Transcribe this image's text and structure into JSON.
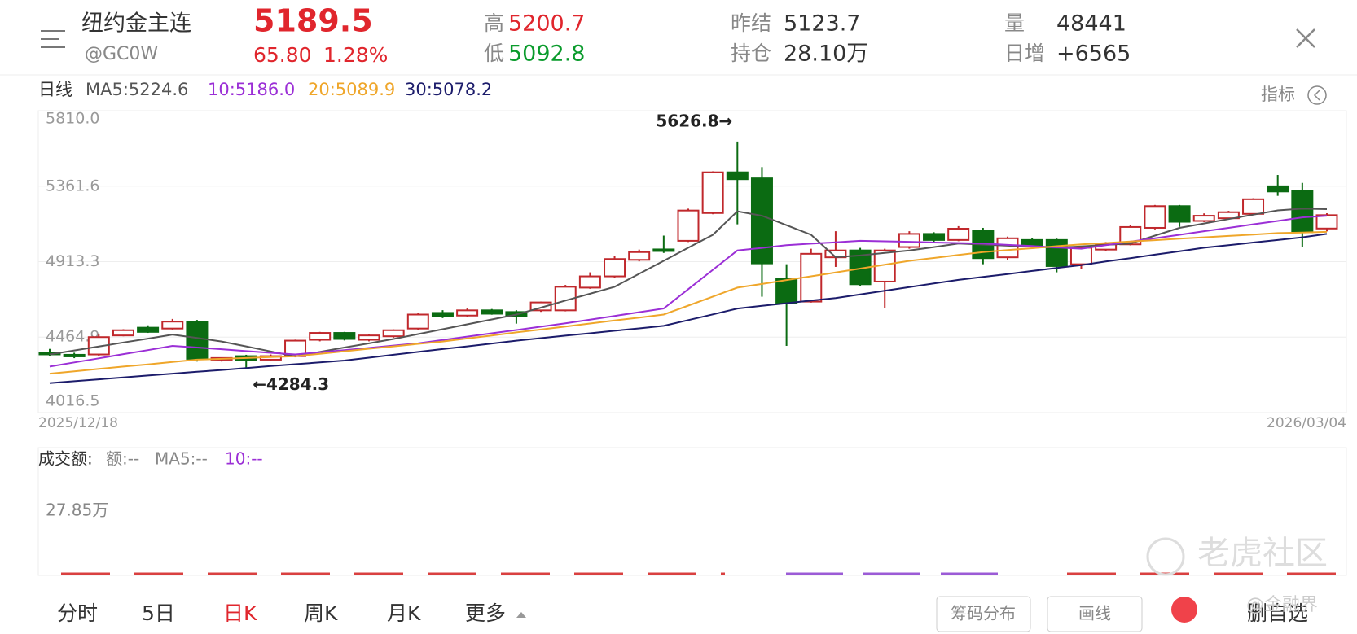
{
  "header": {
    "name": "纽约金主连",
    "code": "@GC0W",
    "price": "5189.5",
    "change": "65.80",
    "change_pct": "1.28%",
    "high_label": "高",
    "high": "5200.7",
    "low_label": "低",
    "low": "5092.8",
    "prev_settle_label": "昨结",
    "prev_settle": "5123.7",
    "open_interest_label": "持仓",
    "open_interest": "28.10万",
    "volume_label": "量",
    "volume": "48441",
    "daily_increase_label": "日增",
    "daily_increase": "+6565"
  },
  "chart_data": {
    "type": "candlestick",
    "period_label": "日线",
    "indicator_button": "指标",
    "categories": [
      "2025/12/18",
      null,
      null,
      null,
      null,
      null,
      null,
      null,
      null,
      null,
      null,
      null,
      null,
      null,
      null,
      null,
      null,
      null,
      null,
      null,
      null,
      null,
      null,
      null,
      null,
      null,
      null,
      null,
      null,
      null,
      null,
      null,
      null,
      null,
      null,
      null,
      null,
      null,
      null,
      null,
      null,
      null,
      null,
      null,
      null,
      null,
      null,
      null,
      null,
      null,
      null,
      null,
      "2026/03/04"
    ],
    "open": [
      4372,
      4360,
      4362,
      4475,
      4521,
      4516,
      4557,
      4331,
      4352,
      4331,
      4352,
      4449,
      4490,
      4449,
      4470,
      4516,
      4609,
      4593,
      4624,
      4614,
      4624,
      4624,
      4759,
      4826,
      4924,
      4986,
      5037,
      5202,
      5444,
      5408,
      4810,
      4676,
      4939,
      4980,
      4795,
      5000,
      5078,
      5042,
      5099,
      4939,
      5042,
      5042,
      4898,
      4985,
      5016,
      5114,
      5243,
      5155,
      5171,
      5197,
      5361,
      5335,
      5110
    ],
    "high": [
      4395,
      4372,
      4480,
      4512,
      4535,
      4573,
      4567,
      4345,
      4360,
      4362,
      4450,
      4496,
      4496,
      4485,
      4511,
      4610,
      4625,
      4635,
      4632,
      4625,
      4676,
      4775,
      4850,
      4945,
      4985,
      5068,
      5228,
      5450,
      5626.8,
      5475,
      4898,
      4990,
      5094,
      4995,
      4990,
      5094,
      5088,
      5124,
      5114,
      5062,
      5055,
      5050,
      5006,
      5030,
      5130,
      5250,
      5250,
      5200,
      5215,
      5290,
      5428,
      5381,
      5200.7
    ],
    "low": [
      4350,
      4340,
      4352,
      4470,
      4490,
      4510,
      4320,
      4320,
      4284.3,
      4325,
      4345,
      4440,
      4445,
      4440,
      4462,
      4508,
      4578,
      4585,
      4598,
      4545,
      4615,
      4618,
      4752,
      4818,
      4915,
      4965,
      5030,
      5195,
      5135,
      4705,
      4413,
      4670,
      4882,
      4770,
      4640,
      4990,
      5030,
      5035,
      4898,
      4925,
      5000,
      4850,
      4870,
      4978,
      5010,
      5105,
      5120,
      5148,
      5165,
      5190,
      5304,
      5001,
      5092.8
    ],
    "close": [
      4368,
      4352,
      4465,
      4506,
      4496,
      4557,
      4336,
      4341,
      4326,
      4352,
      4444,
      4490,
      4454,
      4475,
      4506,
      4599,
      4588,
      4624,
      4604,
      4588,
      4671,
      4764,
      4826,
      4929,
      4970,
      4980,
      5217,
      5444,
      5403,
      4903,
      4666,
      4960,
      4980,
      4779,
      4980,
      5078,
      5042,
      5109,
      4934,
      5052,
      5006,
      4887,
      4996,
      5016,
      5119,
      5243,
      5150,
      5186,
      5207,
      5284,
      5330,
      5088,
      5189.5
    ],
    "up_color": "#c0282c",
    "down_color": "#0b6b12",
    "series": [
      {
        "name": "MA5:5224.6",
        "color": "#555555",
        "values": [
          4362,
          4386,
          4409,
          4433,
          4456,
          4480,
          4460,
          4439,
          4410,
          4380,
          4351,
          4377,
          4403,
          4428,
          4454,
          4483,
          4512,
          4541,
          4570,
          4599,
          4640,
          4682,
          4723,
          4764,
          4841,
          4918,
          4996,
          5073,
          5212,
          5186,
          5130,
          5073,
          4940,
          4950,
          4965,
          4980,
          5000,
          5021,
          5015,
          5008,
          5002,
          4996,
          5004,
          5013,
          5021,
          5068,
          5114,
          5140,
          5166,
          5192,
          5218,
          5228,
          5225
        ]
      },
      {
        "name": "10:5186.0",
        "color": "#9b2fd6",
        "values": [
          4290,
          4315,
          4339,
          4364,
          4388,
          4413,
          4403,
          4393,
          4382,
          4372,
          4362,
          4375,
          4388,
          4401,
          4415,
          4428,
          4448,
          4468,
          4488,
          4507,
          4527,
          4547,
          4569,
          4591,
          4613,
          4635,
          4750,
          4865,
          4980,
          4995,
          5011,
          5020,
          5028,
          5037,
          5034,
          5031,
          5027,
          5024,
          5021,
          5013,
          5006,
          4998,
          4990,
          5011,
          5032,
          5052,
          5073,
          5094,
          5114,
          5135,
          5155,
          5176,
          5186
        ]
      },
      {
        "name": "20:5089.9",
        "color": "#efa62a",
        "values": [
          4248,
          4262,
          4276,
          4290,
          4303,
          4317,
          4331,
          4336,
          4341,
          4346,
          4351,
          4366,
          4381,
          4396,
          4410,
          4425,
          4439,
          4457,
          4475,
          4493,
          4510,
          4528,
          4546,
          4564,
          4581,
          4599,
          4652,
          4706,
          4759,
          4781,
          4804,
          4826,
          4849,
          4872,
          4895,
          4918,
          4935,
          4953,
          4970,
          4982,
          4993,
          5005,
          5016,
          5024,
          5033,
          5041,
          5050,
          5058,
          5066,
          5074,
          5083,
          5086,
          5090
        ]
      },
      {
        "name": "30:5078.2",
        "color": "#1c1c6b",
        "values": [
          4192,
          4203,
          4214,
          4226,
          4237,
          4248,
          4259,
          4270,
          4281,
          4293,
          4304,
          4315,
          4326,
          4343,
          4360,
          4377,
          4394,
          4410,
          4427,
          4444,
          4459,
          4474,
          4488,
          4503,
          4517,
          4532,
          4566,
          4600,
          4635,
          4651,
          4666,
          4682,
          4697,
          4719,
          4740,
          4762,
          4784,
          4805,
          4823,
          4840,
          4858,
          4876,
          4893,
          4914,
          4934,
          4955,
          4975,
          4996,
          5011,
          5027,
          5042,
          5058,
          5078
        ]
      }
    ],
    "ylim": [
      4016.5,
      5810
    ],
    "yticks": [
      {
        "value": 4016.5,
        "label": "4016.5"
      },
      {
        "value": 4464.9,
        "label": "4464.9"
      },
      {
        "value": 4913.3,
        "label": "4913.3"
      },
      {
        "value": 5361.6,
        "label": "5361.6"
      },
      {
        "value": 5810,
        "label": "5810.0"
      }
    ],
    "grid": true,
    "annotations": [
      {
        "text": "5626.8→"
      },
      {
        "text": "←4284.3"
      }
    ]
  },
  "volume_panel": {
    "title": "成交额:",
    "items": [
      "额:--",
      "MA5:--",
      "10:--"
    ],
    "axis_label": "27.85万"
  },
  "tabs": [
    "分时",
    "5日",
    "日K",
    "周K",
    "月K",
    "更多"
  ],
  "buttons": [
    "筹码分布",
    "画线",
    "删自选"
  ],
  "watermarks": [
    "老虎社区",
    "@金融界"
  ]
}
